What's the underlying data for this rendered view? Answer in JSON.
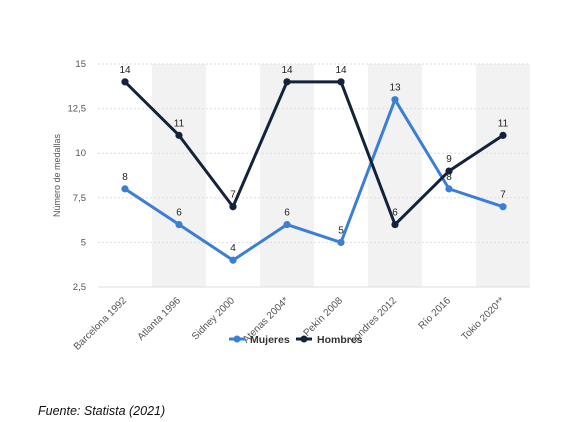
{
  "chart_data": {
    "type": "line",
    "categories": [
      "Barcelona 1992",
      "Atlanta 1996",
      "Sidney 2000",
      "Atenas 2004*",
      "Pekín 2008",
      "Londres 2012",
      "Río 2016",
      "Tokio 2020**"
    ],
    "series": [
      {
        "name": "Mujeres",
        "color": "#3a7fd5",
        "values": [
          8,
          6,
          4,
          6,
          5,
          13,
          8,
          7
        ]
      },
      {
        "name": "Hombres",
        "color": "#14233a",
        "values": [
          14,
          11,
          7,
          14,
          14,
          6,
          9,
          11
        ]
      }
    ],
    "y_ticks": [
      "15",
      "12,5",
      "10",
      "7,5",
      "5",
      "2,5"
    ],
    "ylabel": "Número de medallas",
    "xlabel": "",
    "ylim": [
      2.5,
      15
    ],
    "grid": true,
    "legend": "bottom"
  },
  "source": "Fuente: Statista (2021)"
}
